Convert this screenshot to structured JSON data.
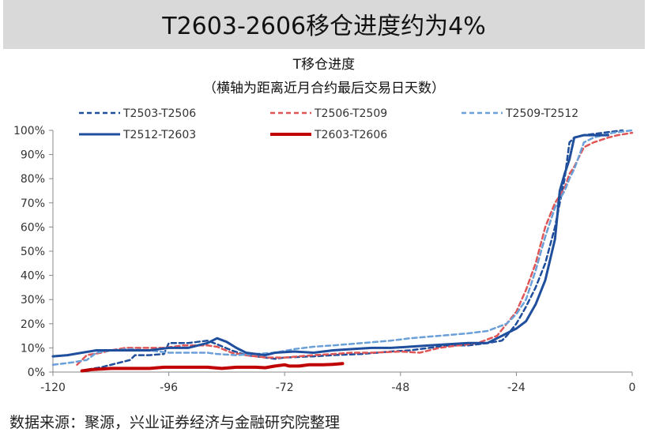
{
  "header": {
    "title": "T2603-2606移仓进度约为4%"
  },
  "footer": {
    "source": "数据来源：聚源，兴业证券经济与金融研究院整理"
  },
  "chart_data": {
    "type": "line",
    "title": "T移仓进度",
    "subtitle": "（横轴为距离近月合约最后交易日天数）",
    "xlabel": "",
    "ylabel": "",
    "xlim": [
      -120,
      0
    ],
    "ylim": [
      0,
      100
    ],
    "x_ticks": [
      "-120",
      "-96",
      "-72",
      "-48",
      "-24",
      "0"
    ],
    "y_ticks": [
      "0%",
      "10%",
      "20%",
      "30%",
      "40%",
      "50%",
      "60%",
      "70%",
      "80%",
      "90%",
      "100%"
    ],
    "grid": false,
    "legend_position": "top",
    "series": [
      {
        "name": "T2503-T2506",
        "color": "#1f4e9c",
        "dash": "dashed",
        "width": 2.5,
        "points": [
          [
            -113,
            1
          ],
          [
            -110,
            2
          ],
          [
            -107,
            3.5
          ],
          [
            -104,
            5
          ],
          [
            -103,
            7
          ],
          [
            -100,
            7
          ],
          [
            -97,
            7.5
          ],
          [
            -96,
            12
          ],
          [
            -92,
            12
          ],
          [
            -88,
            13
          ],
          [
            -86,
            11.5
          ],
          [
            -83,
            9
          ],
          [
            -80,
            7
          ],
          [
            -76,
            6
          ],
          [
            -74,
            5.5
          ],
          [
            -72,
            6
          ],
          [
            -66,
            6.5
          ],
          [
            -62,
            7
          ],
          [
            -56,
            7.5
          ],
          [
            -50,
            8.5
          ],
          [
            -46,
            9
          ],
          [
            -42,
            10
          ],
          [
            -38,
            11
          ],
          [
            -34,
            11
          ],
          [
            -30,
            12
          ],
          [
            -27,
            13
          ],
          [
            -26,
            15
          ],
          [
            -24,
            20
          ],
          [
            -22,
            27
          ],
          [
            -20,
            35
          ],
          [
            -18,
            45
          ],
          [
            -16,
            60
          ],
          [
            -14,
            80
          ],
          [
            -13,
            95
          ],
          [
            -12,
            97
          ],
          [
            -10,
            98
          ],
          [
            -6,
            99
          ],
          [
            -2,
            100
          ]
        ]
      },
      {
        "name": "T2506-T2509",
        "color": "#e05555",
        "dash": "dashed",
        "width": 2.5,
        "points": [
          [
            -115,
            3
          ],
          [
            -113,
            7
          ],
          [
            -110,
            8
          ],
          [
            -108,
            9
          ],
          [
            -105,
            10
          ],
          [
            -100,
            10
          ],
          [
            -97,
            10
          ],
          [
            -93,
            11
          ],
          [
            -88,
            11
          ],
          [
            -86,
            10.5
          ],
          [
            -83,
            8
          ],
          [
            -80,
            7
          ],
          [
            -76,
            6
          ],
          [
            -72,
            6
          ],
          [
            -66,
            7
          ],
          [
            -62,
            7.5
          ],
          [
            -58,
            8
          ],
          [
            -54,
            8
          ],
          [
            -48,
            8.5
          ],
          [
            -44,
            8
          ],
          [
            -40,
            10
          ],
          [
            -36,
            11
          ],
          [
            -32,
            12
          ],
          [
            -28,
            15
          ],
          [
            -26,
            20
          ],
          [
            -24,
            25
          ],
          [
            -22,
            34
          ],
          [
            -20,
            45
          ],
          [
            -18,
            60
          ],
          [
            -16,
            70
          ],
          [
            -14,
            76
          ],
          [
            -13,
            82
          ],
          [
            -12,
            85
          ],
          [
            -10,
            93
          ],
          [
            -8,
            95
          ],
          [
            -5,
            97
          ],
          [
            -3,
            98
          ],
          [
            0,
            99
          ]
        ]
      },
      {
        "name": "T2509-T2512",
        "color": "#6a9fd8",
        "dash": "dashed",
        "width": 2.5,
        "points": [
          [
            -120,
            3
          ],
          [
            -116,
            4
          ],
          [
            -113,
            5
          ],
          [
            -111,
            8
          ],
          [
            -108,
            9
          ],
          [
            -104,
            9.5
          ],
          [
            -100,
            9
          ],
          [
            -96,
            8
          ],
          [
            -92,
            8
          ],
          [
            -88,
            8
          ],
          [
            -86,
            7.5
          ],
          [
            -82,
            7
          ],
          [
            -78,
            7.5
          ],
          [
            -74,
            8
          ],
          [
            -70,
            9.5
          ],
          [
            -66,
            10.5
          ],
          [
            -62,
            11
          ],
          [
            -56,
            12
          ],
          [
            -50,
            13
          ],
          [
            -46,
            14
          ],
          [
            -40,
            15
          ],
          [
            -34,
            16
          ],
          [
            -30,
            17
          ],
          [
            -26,
            20
          ],
          [
            -24,
            24
          ],
          [
            -22,
            30
          ],
          [
            -20,
            42
          ],
          [
            -18,
            56
          ],
          [
            -16,
            68
          ],
          [
            -14,
            75
          ],
          [
            -13,
            80
          ],
          [
            -12,
            84
          ],
          [
            -10,
            95
          ],
          [
            -8,
            97
          ],
          [
            -6,
            98
          ],
          [
            -4,
            99
          ],
          [
            0,
            100
          ]
        ]
      },
      {
        "name": "T2512-T2603",
        "color": "#1f4e9c",
        "dash": "solid",
        "width": 3,
        "points": [
          [
            -120,
            6.5
          ],
          [
            -117,
            7
          ],
          [
            -114,
            8
          ],
          [
            -111,
            9
          ],
          [
            -108,
            9
          ],
          [
            -104,
            9
          ],
          [
            -100,
            9
          ],
          [
            -96,
            10
          ],
          [
            -92,
            10
          ],
          [
            -90,
            11
          ],
          [
            -88,
            12
          ],
          [
            -86,
            14
          ],
          [
            -84,
            12.5
          ],
          [
            -82,
            10
          ],
          [
            -80,
            8
          ],
          [
            -78,
            7.5
          ],
          [
            -76,
            7
          ],
          [
            -74,
            8
          ],
          [
            -70,
            8.5
          ],
          [
            -66,
            8
          ],
          [
            -62,
            9
          ],
          [
            -58,
            9.5
          ],
          [
            -54,
            10
          ],
          [
            -50,
            10
          ],
          [
            -46,
            10.5
          ],
          [
            -42,
            11
          ],
          [
            -38,
            11.5
          ],
          [
            -34,
            12
          ],
          [
            -30,
            12
          ],
          [
            -28,
            14
          ],
          [
            -26,
            16
          ],
          [
            -24,
            18
          ],
          [
            -22,
            21
          ],
          [
            -20,
            28
          ],
          [
            -18,
            38
          ],
          [
            -16,
            55
          ],
          [
            -15,
            75
          ],
          [
            -14,
            82
          ],
          [
            -13,
            88
          ],
          [
            -12,
            97
          ],
          [
            -10,
            98
          ],
          [
            -8,
            98
          ],
          [
            -5,
            98
          ]
        ]
      },
      {
        "name": "T2603-T2606",
        "color": "#c00000",
        "dash": "solid",
        "width": 4,
        "points": [
          [
            -114,
            0.5
          ],
          [
            -112,
            1
          ],
          [
            -108,
            1.5
          ],
          [
            -104,
            1.5
          ],
          [
            -100,
            1.5
          ],
          [
            -97,
            2
          ],
          [
            -92,
            2
          ],
          [
            -88,
            2
          ],
          [
            -85,
            1.5
          ],
          [
            -82,
            2
          ],
          [
            -78,
            2
          ],
          [
            -76,
            1.8
          ],
          [
            -74,
            2.5
          ],
          [
            -72,
            3
          ],
          [
            -71,
            2.5
          ],
          [
            -69,
            2.5
          ],
          [
            -67,
            3
          ],
          [
            -64,
            3
          ],
          [
            -62,
            3.2
          ],
          [
            -60,
            3.5
          ]
        ]
      }
    ]
  }
}
